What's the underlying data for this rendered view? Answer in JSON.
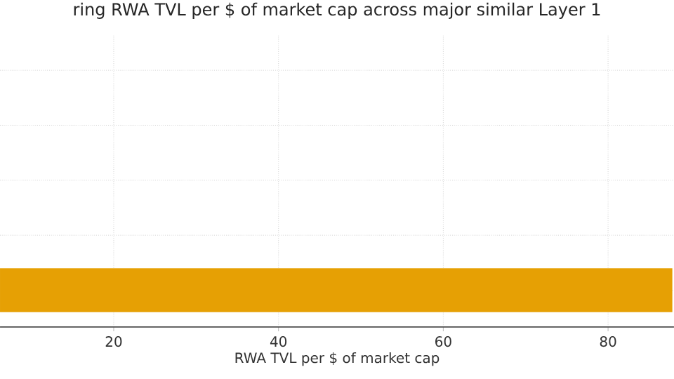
{
  "chart_data": {
    "type": "bar",
    "orientation": "horizontal",
    "title": "ring RWA TVL per $ of market cap across major similar Layer 1",
    "xlabel": "RWA TVL per $ of market cap",
    "categories": [
      null,
      null,
      null,
      null,
      null
    ],
    "values": [
      null,
      null,
      null,
      null,
      87.8
    ],
    "color": "#e6a004",
    "xlim": [
      6.2,
      88
    ],
    "xticks": [
      20,
      40,
      60,
      80
    ],
    "grid": true,
    "tick_labels": "x"
  }
}
